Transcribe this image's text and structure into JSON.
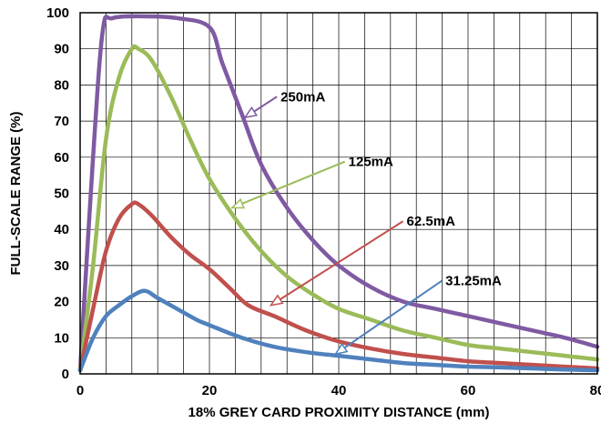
{
  "chart_data": {
    "type": "line",
    "title": "",
    "xlabel": "18% GREY CARD PROXIMITY DISTANCE (mm)",
    "ylabel": "FULL-SCALE RANGE (%)",
    "xlim": [
      0,
      80
    ],
    "ylim": [
      0,
      100
    ],
    "xticks": [
      0,
      20,
      40,
      60,
      80
    ],
    "yticks": [
      0,
      10,
      20,
      30,
      40,
      50,
      60,
      70,
      80,
      90,
      100
    ],
    "grid": true,
    "series": [
      {
        "name": "250mA",
        "color": "#7f5aa2",
        "points": [
          [
            0,
            1
          ],
          [
            2,
            60
          ],
          [
            3.5,
            95
          ],
          [
            5,
            98.5
          ],
          [
            10,
            99
          ],
          [
            15,
            98.5
          ],
          [
            20,
            96
          ],
          [
            22,
            86
          ],
          [
            25,
            72
          ],
          [
            28,
            58
          ],
          [
            32,
            46
          ],
          [
            36,
            37
          ],
          [
            40,
            30
          ],
          [
            45,
            24
          ],
          [
            50,
            20
          ],
          [
            55,
            18
          ],
          [
            60,
            16
          ],
          [
            65,
            14
          ],
          [
            70,
            12
          ],
          [
            75,
            10
          ],
          [
            80,
            7.5
          ]
        ]
      },
      {
        "name": "125mA",
        "color": "#9bbb59",
        "points": [
          [
            0,
            1
          ],
          [
            2,
            30
          ],
          [
            4,
            65
          ],
          [
            6,
            82
          ],
          [
            8,
            90
          ],
          [
            9,
            90
          ],
          [
            11,
            87
          ],
          [
            14,
            77
          ],
          [
            17,
            65
          ],
          [
            20,
            54
          ],
          [
            24,
            43
          ],
          [
            28,
            34
          ],
          [
            32,
            27
          ],
          [
            36,
            22
          ],
          [
            40,
            18
          ],
          [
            45,
            15
          ],
          [
            50,
            12
          ],
          [
            55,
            10
          ],
          [
            60,
            8
          ],
          [
            65,
            7
          ],
          [
            70,
            6
          ],
          [
            75,
            5
          ],
          [
            80,
            4
          ]
        ]
      },
      {
        "name": "62.5mA",
        "color": "#c0504d",
        "points": [
          [
            0,
            1
          ],
          [
            2,
            18
          ],
          [
            4,
            34
          ],
          [
            6,
            43
          ],
          [
            8,
            47
          ],
          [
            9,
            47
          ],
          [
            11,
            44
          ],
          [
            14,
            38
          ],
          [
            17,
            33
          ],
          [
            20,
            29
          ],
          [
            23,
            24
          ],
          [
            26,
            19
          ],
          [
            30,
            16
          ],
          [
            35,
            12
          ],
          [
            40,
            9
          ],
          [
            45,
            7
          ],
          [
            50,
            5.5
          ],
          [
            55,
            4.5
          ],
          [
            60,
            3.5
          ],
          [
            65,
            3
          ],
          [
            70,
            2.5
          ],
          [
            75,
            2
          ],
          [
            80,
            1.5
          ]
        ]
      },
      {
        "name": "31.25mA",
        "color": "#4f81bd",
        "points": [
          [
            0,
            1
          ],
          [
            2,
            10
          ],
          [
            4,
            16
          ],
          [
            6,
            19
          ],
          [
            8,
            21.5
          ],
          [
            10,
            23
          ],
          [
            12,
            21
          ],
          [
            15,
            18
          ],
          [
            18,
            15
          ],
          [
            20,
            13.5
          ],
          [
            25,
            10
          ],
          [
            30,
            7.5
          ],
          [
            35,
            6
          ],
          [
            40,
            5
          ],
          [
            45,
            4
          ],
          [
            50,
            3
          ],
          [
            55,
            2.5
          ],
          [
            60,
            2
          ],
          [
            65,
            1.8
          ],
          [
            70,
            1.5
          ],
          [
            75,
            1.2
          ],
          [
            80,
            1
          ]
        ]
      }
    ],
    "annotations": [
      {
        "text": "250mA",
        "series": "250mA",
        "point": [
          25.5,
          71
        ],
        "label": [
          31,
          75.5
        ]
      },
      {
        "text": "125mA",
        "series": "125mA",
        "point": [
          23.5,
          46
        ],
        "label": [
          41.5,
          57.5
        ]
      },
      {
        "text": "62.5mA",
        "series": "62.5mA",
        "point": [
          29.5,
          19
        ],
        "label": [
          50.5,
          41
        ]
      },
      {
        "text": "31.25mA",
        "series": "31.25mA",
        "point": [
          39.5,
          5.5
        ],
        "label": [
          56.5,
          24.5
        ]
      }
    ]
  }
}
